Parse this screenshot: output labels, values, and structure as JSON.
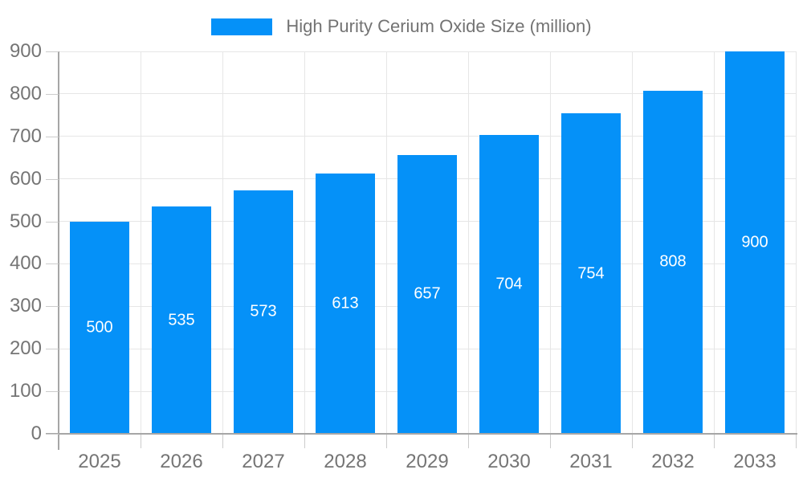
{
  "chart_data": {
    "type": "bar",
    "title": "High Purity Cerium Oxide Size (million)",
    "legend": {
      "position": "top",
      "label": "High Purity Cerium Oxide Size (million)"
    },
    "categories": [
      "2025",
      "2026",
      "2027",
      "2028",
      "2029",
      "2030",
      "2031",
      "2032",
      "2033"
    ],
    "series": [
      {
        "name": "High Purity Cerium Oxide Size (million)",
        "values": [
          500,
          535,
          573,
          613,
          657,
          704,
          754,
          808,
          900
        ]
      }
    ],
    "xlabel": "",
    "ylabel": "",
    "ylim": [
      0,
      900
    ],
    "y_tick_step": 100,
    "grid": true,
    "value_labels_shown": true,
    "style": {
      "bar_color": "#0591F8",
      "bar_label_color": "#FFFFFF",
      "gridline_color": "#E6E6E6",
      "axis_line_color": "#A6A6A6",
      "tick_color": "#CCCCCC",
      "axis_label_color": "#757575",
      "legend_text_color": "#737373",
      "background": "#FFFFFF"
    }
  }
}
